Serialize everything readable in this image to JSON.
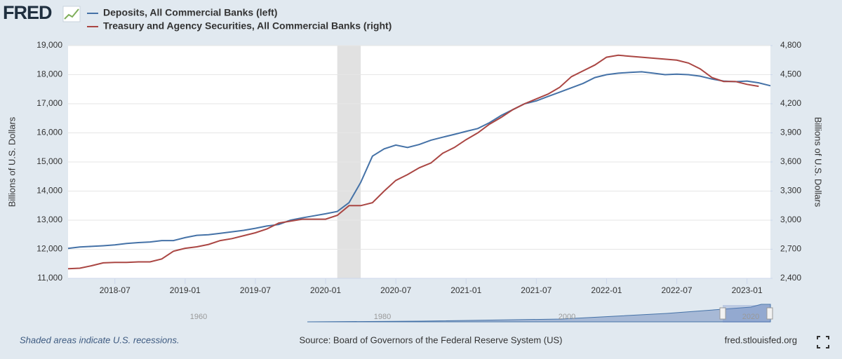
{
  "logo": "FRED",
  "chart_data": {
    "type": "line",
    "x": [
      "2018-03",
      "2018-04",
      "2018-05",
      "2018-06",
      "2018-07",
      "2018-08",
      "2018-09",
      "2018-10",
      "2018-11",
      "2018-12",
      "2019-01",
      "2019-02",
      "2019-03",
      "2019-04",
      "2019-05",
      "2019-06",
      "2019-07",
      "2019-08",
      "2019-09",
      "2019-10",
      "2019-11",
      "2019-12",
      "2020-01",
      "2020-02",
      "2020-03",
      "2020-04",
      "2020-05",
      "2020-06",
      "2020-07",
      "2020-08",
      "2020-09",
      "2020-10",
      "2020-11",
      "2020-12",
      "2021-01",
      "2021-02",
      "2021-03",
      "2021-04",
      "2021-05",
      "2021-06",
      "2021-07",
      "2021-08",
      "2021-09",
      "2021-10",
      "2021-11",
      "2021-12",
      "2022-01",
      "2022-02",
      "2022-03",
      "2022-04",
      "2022-05",
      "2022-06",
      "2022-07",
      "2022-08",
      "2022-09",
      "2022-10",
      "2022-11",
      "2022-12",
      "2023-01",
      "2023-02",
      "2023-03"
    ],
    "xlim": [
      "2018-03",
      "2023-03"
    ],
    "xticks": [
      "2018-07",
      "2019-01",
      "2019-07",
      "2020-01",
      "2020-07",
      "2021-01",
      "2021-07",
      "2022-01",
      "2022-07",
      "2023-01"
    ],
    "series": [
      {
        "name": "Deposits, All Commercial Banks (left)",
        "color": "#4572a7",
        "values": [
          12030,
          12080,
          12100,
          12120,
          12150,
          12200,
          12230,
          12250,
          12300,
          12300,
          12400,
          12480,
          12500,
          12550,
          12600,
          12650,
          12720,
          12800,
          12850,
          13000,
          13080,
          13150,
          13220,
          13300,
          13600,
          14300,
          15200,
          15450,
          15580,
          15500,
          15600,
          15750,
          15850,
          15950,
          16050,
          16150,
          16350,
          16600,
          16800,
          17000,
          17100,
          17250,
          17400,
          17550,
          17700,
          17900,
          18000,
          18050,
          18080,
          18100,
          18050,
          18000,
          18020,
          18000,
          17950,
          17850,
          17780,
          17760,
          17780,
          17720,
          17620
        ]
      },
      {
        "name": "Treasury and Agency Securities, All Commercial Banks (right)",
        "color": "#aa4643",
        "axis": "y2",
        "values": [
          2500,
          2505,
          2530,
          2560,
          2565,
          2565,
          2570,
          2570,
          2600,
          2680,
          2710,
          2725,
          2750,
          2790,
          2810,
          2840,
          2870,
          2910,
          2970,
          2990,
          3010,
          3010,
          3010,
          3050,
          3150,
          3150,
          3180,
          3300,
          3410,
          3470,
          3540,
          3590,
          3690,
          3750,
          3830,
          3900,
          3990,
          4060,
          4140,
          4200,
          4250,
          4300,
          4370,
          4480,
          4540,
          4600,
          4680,
          4700,
          4690,
          4680,
          4670,
          4660,
          4650,
          4620,
          4560,
          4470,
          4430,
          4430,
          4400,
          4380,
          null
        ]
      }
    ],
    "ylabel": "Billions of U.S. Dollars",
    "y2label": "Billions of U.S. Dollars",
    "ylim": [
      11000,
      19000
    ],
    "yticks": [
      {
        "value": 11000,
        "label": "11,000"
      },
      {
        "value": 12000,
        "label": "12,000"
      },
      {
        "value": 13000,
        "label": "13,000"
      },
      {
        "value": 14000,
        "label": "14,000"
      },
      {
        "value": 15000,
        "label": "15,000"
      },
      {
        "value": 16000,
        "label": "16,000"
      },
      {
        "value": 17000,
        "label": "17,000"
      },
      {
        "value": 18000,
        "label": "18,000"
      },
      {
        "value": 19000,
        "label": "19,000"
      }
    ],
    "y2lim": [
      2400,
      4800
    ],
    "y2ticks": [
      {
        "value": 2400,
        "label": "2,400"
      },
      {
        "value": 2700,
        "label": "2,700"
      },
      {
        "value": 3000,
        "label": "3,000"
      },
      {
        "value": 3300,
        "label": "3,300"
      },
      {
        "value": 3600,
        "label": "3,600"
      },
      {
        "value": 3900,
        "label": "3,900"
      },
      {
        "value": 4200,
        "label": "4,200"
      },
      {
        "value": 4500,
        "label": "4,500"
      },
      {
        "value": 4800,
        "label": "4,800"
      }
    ],
    "grid": true,
    "recessions": [
      {
        "start": "2020-02",
        "end": "2020-04"
      }
    ],
    "navigator_labels": [
      "1960",
      "1980",
      "2000",
      "2020"
    ],
    "recession_note": "Shaded areas indicate U.S. recessions.",
    "source": "Source: Board of Governors of the Federal Reserve System (US)",
    "site": "fred.stlouisfed.org"
  }
}
